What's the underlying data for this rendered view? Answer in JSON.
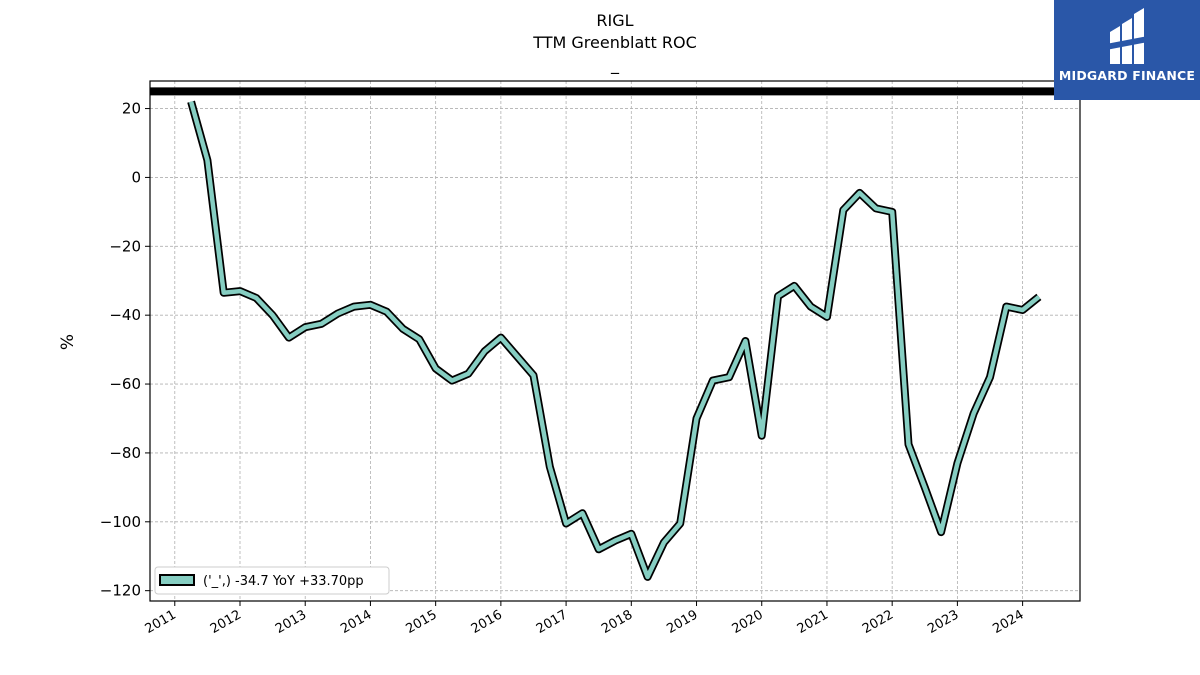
{
  "chart_data": {
    "type": "line",
    "title": "RIGL",
    "subtitle": "TTM Greenblatt ROC",
    "subtitle2": "_",
    "ylabel": "%",
    "ylim": [
      -123,
      28
    ],
    "xlim": [
      2010.62,
      2024.88
    ],
    "yticks": [
      20,
      0,
      -20,
      -40,
      -60,
      -80,
      -100,
      -120
    ],
    "ytick_labels": [
      "20",
      "0",
      "−20",
      "−40",
      "−60",
      "−80",
      "−100",
      "−120"
    ],
    "xticks": [
      2011,
      2012,
      2013,
      2014,
      2015,
      2016,
      2017,
      2018,
      2019,
      2020,
      2021,
      2022,
      2023,
      2024
    ],
    "xtick_labels": [
      "2011",
      "2012",
      "2013",
      "2014",
      "2015",
      "2016",
      "2017",
      "2018",
      "2019",
      "2020",
      "2021",
      "2022",
      "2023",
      "2024"
    ],
    "reference_line_y": 25,
    "grid": true,
    "legend_position": "lower-left",
    "series": [
      {
        "name": "('_',) -34.7 YoY +33.70pp",
        "color": "#86cec2",
        "x": [
          2011.25,
          2011.5,
          2011.75,
          2012.0,
          2012.25,
          2012.5,
          2012.75,
          2013.0,
          2013.25,
          2013.5,
          2013.75,
          2014.0,
          2014.25,
          2014.5,
          2014.75,
          2015.0,
          2015.25,
          2015.5,
          2015.75,
          2016.0,
          2016.25,
          2016.5,
          2016.75,
          2017.0,
          2017.25,
          2017.5,
          2017.75,
          2018.0,
          2018.25,
          2018.5,
          2018.75,
          2019.0,
          2019.25,
          2019.5,
          2019.75,
          2020.0,
          2020.25,
          2020.5,
          2020.75,
          2021.0,
          2021.25,
          2021.5,
          2021.75,
          2022.0,
          2022.25,
          2022.5,
          2022.75,
          2023.0,
          2023.25,
          2023.5,
          2023.75,
          2024.0,
          2024.25
        ],
        "values": [
          22,
          5,
          -33.5,
          -33,
          -35,
          -40,
          -46.5,
          -43.5,
          -42.5,
          -39.5,
          -37.5,
          -37,
          -39,
          -44,
          -47,
          -55.5,
          -59,
          -57,
          -50.5,
          -46.5,
          -52,
          -57.5,
          -84,
          -100.5,
          -97.5,
          -108,
          -105.5,
          -103.5,
          -116,
          -106,
          -100.5,
          -70,
          -59,
          -58,
          -47.5,
          -75,
          -34.5,
          -31.5,
          -37.5,
          -40.5,
          -9.5,
          -4.5,
          -9,
          -10,
          -77.5,
          -90,
          -103,
          -83,
          -68.5,
          -58,
          -37.5,
          -38.5,
          -34.7
        ]
      }
    ]
  },
  "logo": {
    "text": "MIDGARD FINANCE"
  }
}
